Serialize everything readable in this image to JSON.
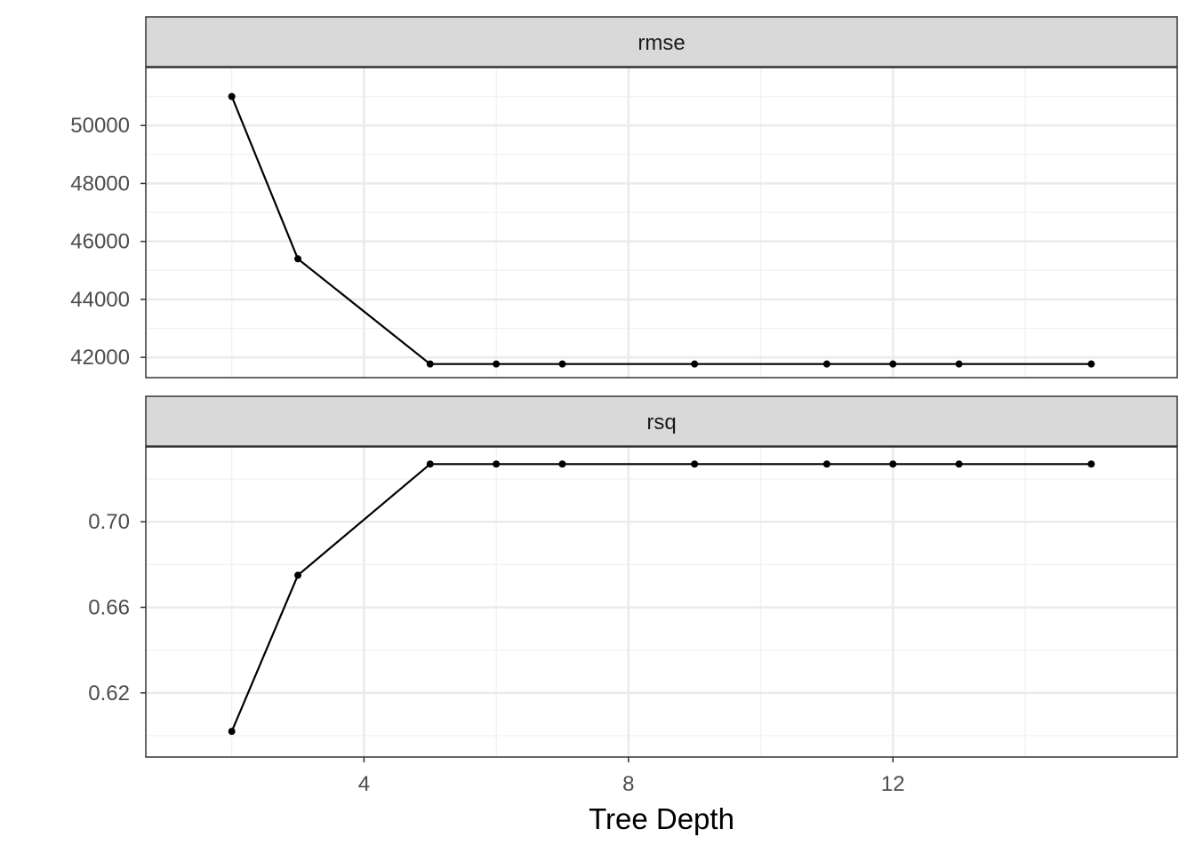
{
  "chart_data": {
    "type": "line",
    "xlabel": "Tree Depth",
    "x_ticks": [
      4,
      8,
      12
    ],
    "xlim": [
      0.7,
      16.3
    ],
    "grid": true,
    "facets": [
      {
        "name": "rmse",
        "strip_label": "rmse",
        "x": [
          2,
          3,
          5,
          6,
          7,
          9,
          11,
          12,
          13,
          15
        ],
        "y": [
          51000,
          45400,
          41770,
          41770,
          41770,
          41770,
          41770,
          41770,
          41770,
          41770
        ],
        "ylim": [
          41300,
          52000
        ],
        "y_ticks": [
          42000,
          44000,
          46000,
          48000,
          50000
        ]
      },
      {
        "name": "rsq",
        "strip_label": "rsq",
        "x": [
          2,
          3,
          5,
          6,
          7,
          9,
          11,
          12,
          13,
          15
        ],
        "y": [
          0.602,
          0.675,
          0.727,
          0.727,
          0.727,
          0.727,
          0.727,
          0.727,
          0.727,
          0.727
        ],
        "ylim": [
          0.59,
          0.735
        ],
        "y_ticks": [
          0.62,
          0.66,
          0.7
        ],
        "y_tick_labels": [
          "0.62",
          "0.66",
          "0.70"
        ]
      }
    ],
    "colors": {
      "line": "#000000",
      "point": "#000000",
      "strip_fill": "#d9d9d9",
      "grid_major": "#ebebeb",
      "grid_minor": "#f2f2f2",
      "panel_border": "#333333"
    }
  }
}
